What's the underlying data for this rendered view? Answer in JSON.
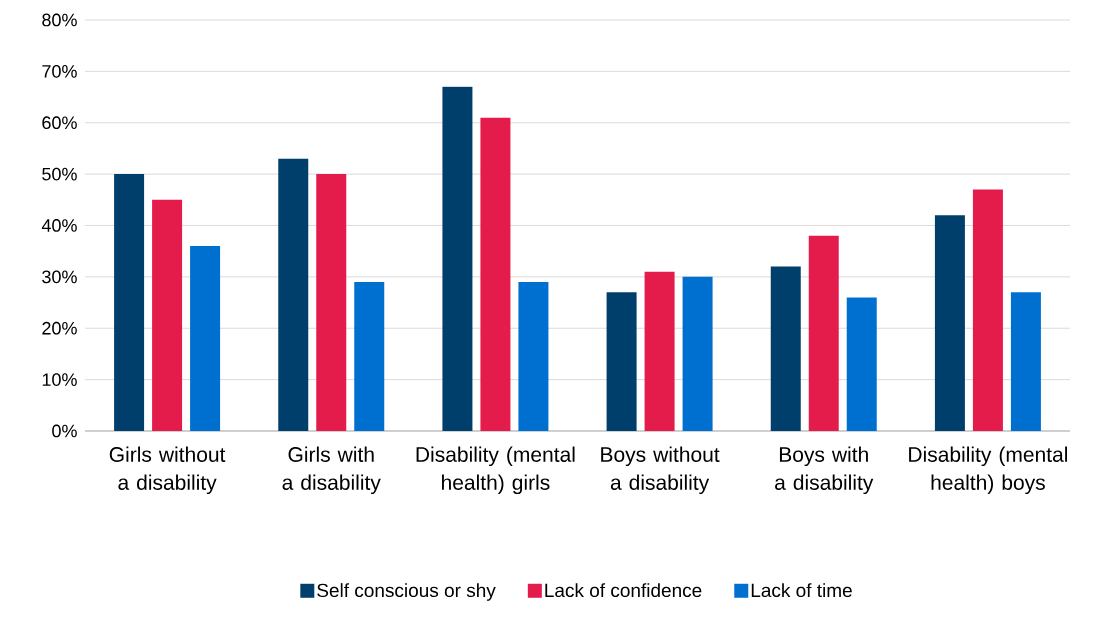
{
  "chart_data": {
    "type": "bar",
    "categories": [
      "Girls without a disability",
      "Girls with a disability",
      "Disability (mental health) girls",
      "Boys without a disability",
      "Boys with a disability",
      "Disability (mental health) boys"
    ],
    "series": [
      {
        "name": "Self conscious or shy",
        "color": "#003f6b",
        "values": [
          50,
          53,
          67,
          27,
          32,
          42
        ]
      },
      {
        "name": "Lack of confidence",
        "color": "#e31c4c",
        "values": [
          45,
          50,
          61,
          31,
          38,
          47
        ]
      },
      {
        "name": "Lack of time",
        "color": "#0070d0",
        "values": [
          36,
          29,
          29,
          30,
          26,
          27
        ]
      }
    ],
    "ylim": [
      0,
      80
    ],
    "yticks": [
      {
        "value": 0,
        "label": "0%"
      },
      {
        "value": 10,
        "label": "10%"
      },
      {
        "value": 20,
        "label": "20%"
      },
      {
        "value": 30,
        "label": "30%"
      },
      {
        "value": 40,
        "label": "40%"
      },
      {
        "value": 50,
        "label": "50%"
      },
      {
        "value": 60,
        "label": "60%"
      },
      {
        "value": 70,
        "label": "70%"
      },
      {
        "value": 80,
        "label": "80%"
      }
    ],
    "grid": "y",
    "legend": "bottom"
  }
}
